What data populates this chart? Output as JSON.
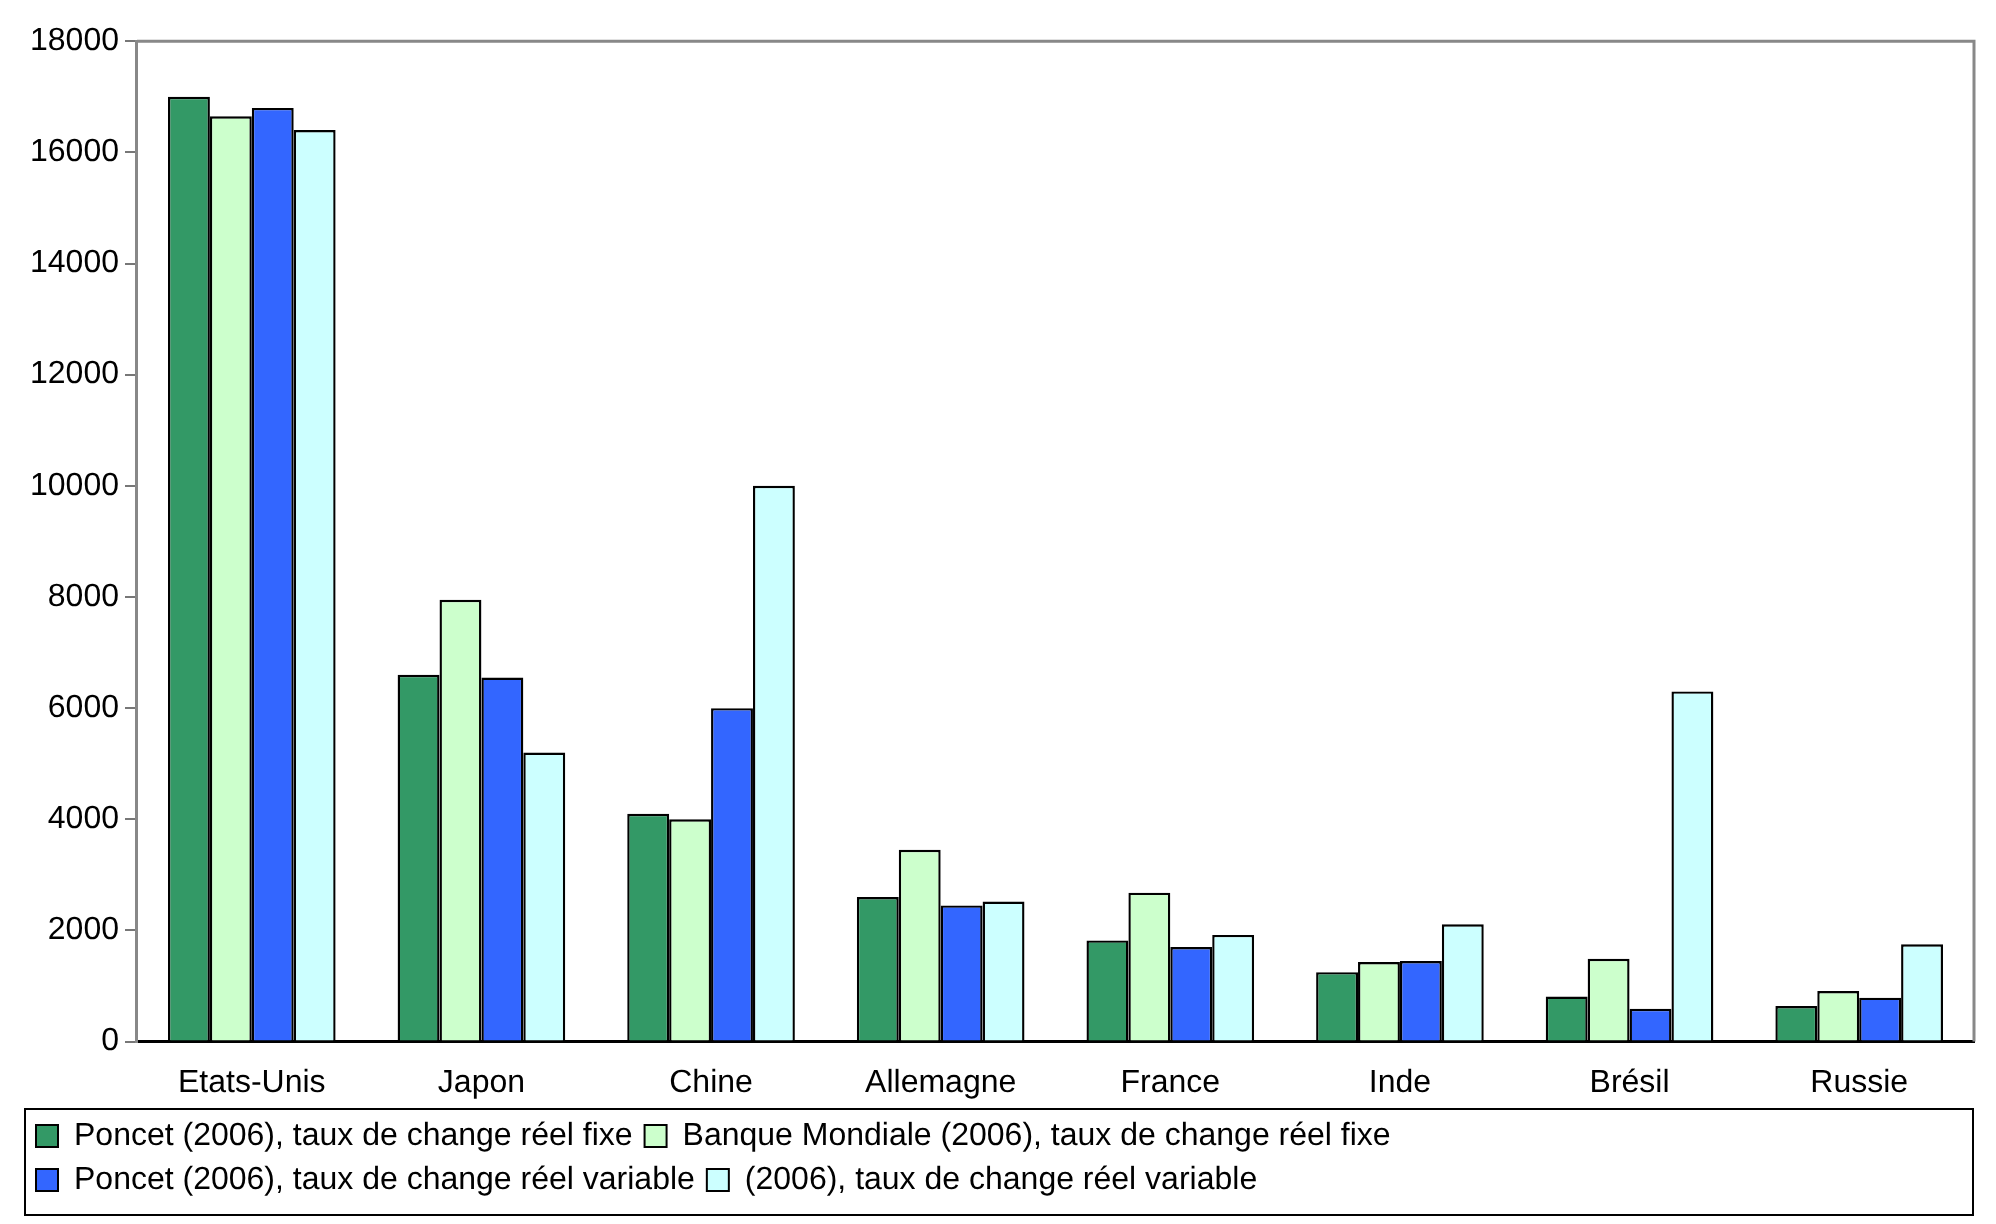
{
  "chart_data": {
    "type": "bar",
    "categories": [
      "Etats-Unis",
      "Japon",
      "Chine",
      "Allemagne",
      "France",
      "Inde",
      "Brésil",
      "Russie"
    ],
    "series": [
      {
        "name": "Poncet (2006), taux de change réel fixe",
        "color": "#339966",
        "values": [
          17000,
          6600,
          4100,
          2600,
          1820,
          1250,
          810,
          640
        ]
      },
      {
        "name": "Banque Mondiale (2006), taux de change réel fixe",
        "color": "#ccffcc",
        "values": [
          16650,
          7950,
          4000,
          3450,
          2680,
          1430,
          1490,
          910
        ]
      },
      {
        "name": "Poncet (2006), taux de change réel variable",
        "color": "#3366ff",
        "values": [
          16800,
          6550,
          6000,
          2450,
          1700,
          1450,
          590,
          790
        ]
      },
      {
        "name": "(2006), taux de change réel variable",
        "color": "#ccffff",
        "values": [
          16400,
          5200,
          10000,
          2520,
          1920,
          2110,
          6300,
          1750
        ]
      }
    ],
    "ylim": [
      0,
      18000
    ],
    "yticks": [
      0,
      2000,
      4000,
      6000,
      8000,
      10000,
      12000,
      14000,
      16000,
      18000
    ],
    "grid": false,
    "legend": "bottom"
  }
}
